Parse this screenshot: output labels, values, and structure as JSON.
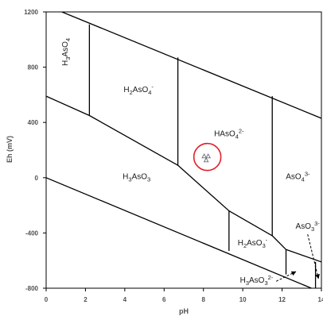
{
  "chart_data": {
    "type": "diagram",
    "xlabel": "pH",
    "ylabel": "Eh (mV)",
    "xlim": [
      0,
      14
    ],
    "ylim": [
      -800,
      1200
    ],
    "x_ticks": [
      "0",
      "2",
      "4",
      "6",
      "8",
      "10",
      "12",
      "14"
    ],
    "y_ticks": [
      "1200",
      "800",
      "400",
      "0",
      "-400",
      "-800"
    ],
    "water_lines": [
      {
        "name": "upper",
        "points": [
          [
            0.8,
            1200
          ],
          [
            14,
            430
          ]
        ]
      },
      {
        "name": "lower",
        "points": [
          [
            0,
            0
          ],
          [
            14,
            -830
          ]
        ]
      }
    ],
    "boundaries": [
      [
        [
          0,
          590
        ],
        [
          2.2,
          450
        ]
      ],
      [
        [
          2.2,
          1110
        ],
        [
          2.2,
          450
        ]
      ],
      [
        [
          2.2,
          450
        ],
        [
          6.7,
          90
        ]
      ],
      [
        [
          6.7,
          870
        ],
        [
          6.7,
          90
        ]
      ],
      [
        [
          6.7,
          90
        ],
        [
          9.3,
          -240
        ]
      ],
      [
        [
          9.3,
          -240
        ],
        [
          11.5,
          -420
        ]
      ],
      [
        [
          9.3,
          -240
        ],
        [
          9.3,
          -530
        ]
      ],
      [
        [
          11.5,
          590
        ],
        [
          11.5,
          -420
        ]
      ],
      [
        [
          11.5,
          -420
        ],
        [
          12.2,
          -520
        ]
      ],
      [
        [
          12.2,
          -520
        ],
        [
          14,
          -610
        ]
      ],
      [
        [
          12.2,
          -520
        ],
        [
          12.2,
          -700
        ]
      ],
      [
        [
          13.7,
          -610
        ],
        [
          13.7,
          -800
        ]
      ]
    ],
    "regions": [
      {
        "formula": [
          [
            "H",
            ""
          ],
          [
            "3",
            "sub"
          ],
          [
            "AsO",
            ""
          ],
          [
            "4",
            "sub"
          ]
        ],
        "at": [
          1.1,
          910
        ],
        "rotate": true
      },
      {
        "formula": [
          [
            "H",
            ""
          ],
          [
            "2",
            "sub"
          ],
          [
            "AsO",
            ""
          ],
          [
            "4",
            "sub"
          ],
          [
            "-",
            "sup"
          ]
        ],
        "at": [
          4.7,
          620
        ]
      },
      {
        "formula": [
          [
            "HAsO",
            ""
          ],
          [
            "4",
            "sub"
          ],
          [
            "2-",
            "sup"
          ]
        ],
        "at": [
          9.3,
          300
        ]
      },
      {
        "formula": [
          [
            "AsO",
            ""
          ],
          [
            "4",
            "sub"
          ],
          [
            "3-",
            "sup"
          ]
        ],
        "at": [
          12.8,
          -10
        ]
      },
      {
        "formula": [
          [
            "H",
            ""
          ],
          [
            "3",
            "sub"
          ],
          [
            "AsO",
            ""
          ],
          [
            "3",
            "sub"
          ]
        ],
        "at": [
          4.6,
          -10
        ]
      },
      {
        "formula": [
          [
            "H",
            ""
          ],
          [
            "2",
            "sub"
          ],
          [
            "AsO",
            ""
          ],
          [
            "3",
            "sub"
          ],
          [
            "-",
            "sup"
          ]
        ],
        "at": [
          10.5,
          -490
        ]
      },
      {
        "formula": [
          [
            "AsO",
            ""
          ],
          [
            "3",
            "sub"
          ],
          [
            "3-",
            "sup"
          ]
        ],
        "at": [
          13.3,
          -370
        ]
      },
      {
        "formula": [
          [
            "H",
            ""
          ],
          [
            "3",
            "sub"
          ],
          [
            "AsO",
            ""
          ],
          [
            "3",
            "sub"
          ],
          [
            "2-",
            "sup"
          ]
        ],
        "at": [
          10.7,
          -760
        ]
      }
    ],
    "arrows": [
      {
        "from": [
          13.3,
          -410
        ],
        "to": [
          13.85,
          -730
        ]
      },
      {
        "from": [
          11.7,
          -750
        ],
        "to": [
          12.7,
          -680
        ]
      }
    ],
    "marker": {
      "at": [
        8.2,
        150
      ],
      "color": "#e0202a",
      "symbol": "triangle-cluster-icon"
    }
  }
}
